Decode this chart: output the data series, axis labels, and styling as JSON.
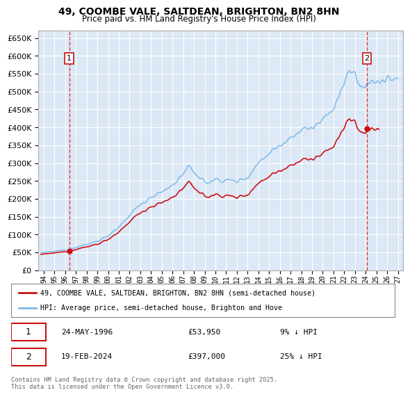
{
  "title": "49, COOMBE VALE, SALTDEAN, BRIGHTON, BN2 8HN",
  "subtitle": "Price paid vs. HM Land Registry's House Price Index (HPI)",
  "sale1_date": "24-MAY-1996",
  "sale1_price": 53950,
  "sale1_label": "9% ↓ HPI",
  "sale2_date": "19-FEB-2024",
  "sale2_price": 397000,
  "sale2_label": "25% ↓ HPI",
  "legend_property": "49, COOMBE VALE, SALTDEAN, BRIGHTON, BN2 8HN (semi-detached house)",
  "legend_hpi": "HPI: Average price, semi-detached house, Brighton and Hove",
  "footnote": "Contains HM Land Registry data © Crown copyright and database right 2025.\nThis data is licensed under the Open Government Licence v3.0.",
  "plot_bg_color": "#dce8f5",
  "grid_color": "#ffffff",
  "hpi_color": "#7ab8e8",
  "price_color": "#cc1111",
  "annotation_color": "#cc1111",
  "ylim_min": 0,
  "ylim_max": 670000,
  "sale1_t": 1996.37,
  "sale2_t": 2024.12
}
